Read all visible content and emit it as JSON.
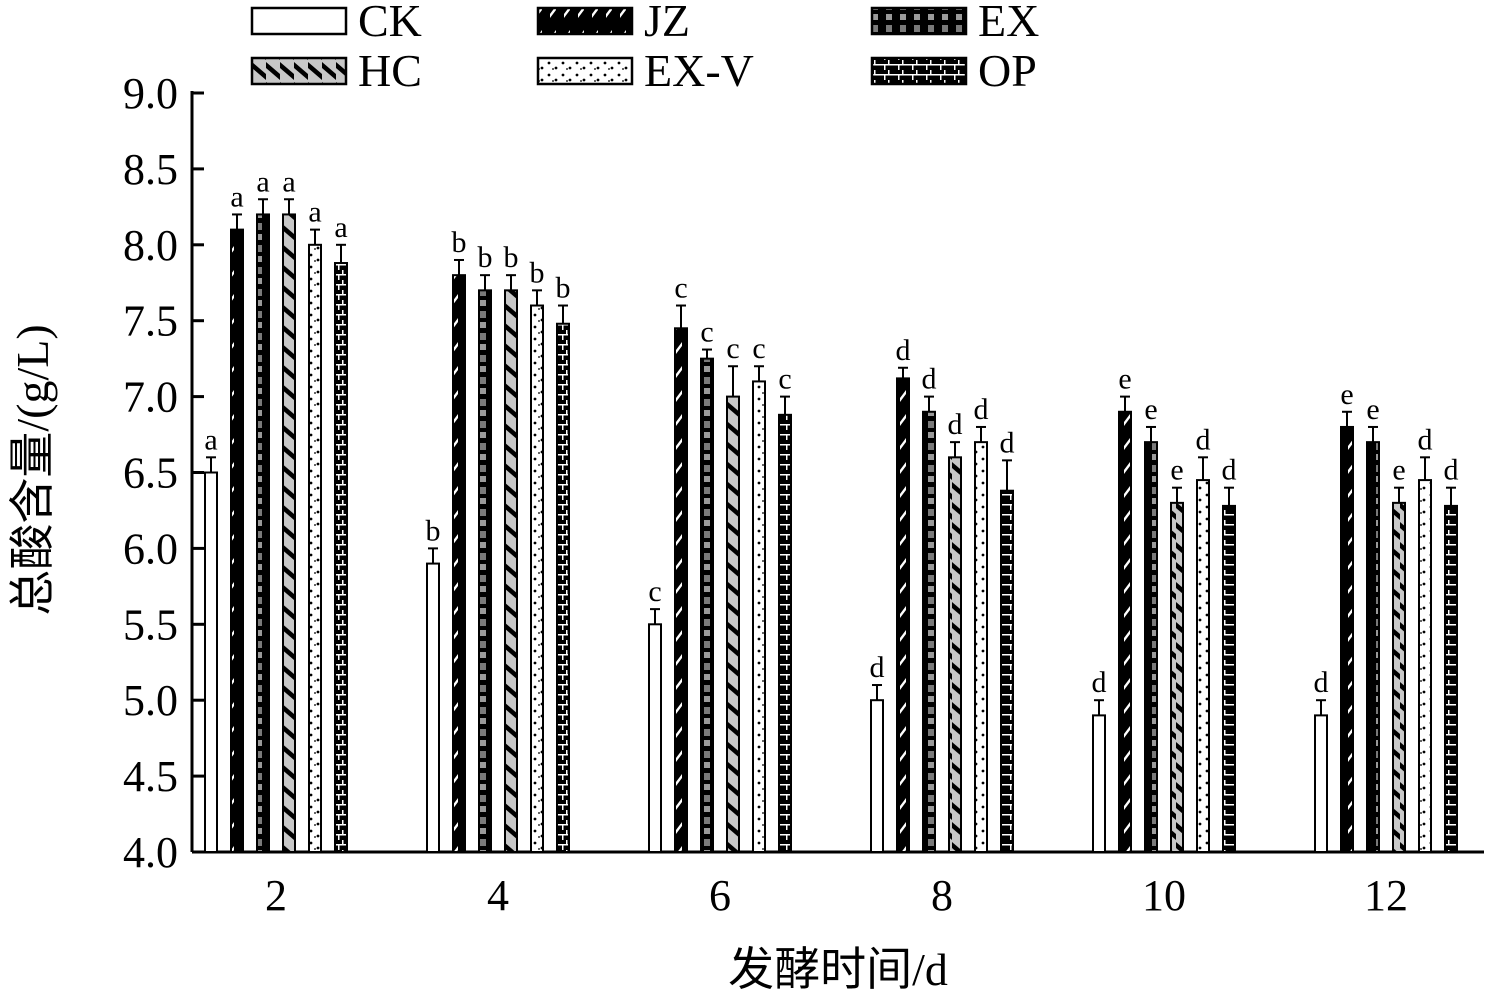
{
  "chart_data": {
    "type": "bar",
    "xlabel": "发酵时间/d",
    "ylabel": "总酸含量/(g/L)",
    "ylim": [
      4.0,
      9.0
    ],
    "yticks": [
      "4.0",
      "4.5",
      "5.0",
      "5.5",
      "6.0",
      "6.5",
      "7.0",
      "7.5",
      "8.0",
      "8.5",
      "9.0"
    ],
    "categories": [
      "2",
      "4",
      "6",
      "8",
      "10",
      "12"
    ],
    "legend_position": "top",
    "series": [
      {
        "name": "CK",
        "pattern": "white",
        "values": [
          6.5,
          5.9,
          5.5,
          5.0,
          4.9,
          4.9
        ],
        "errors": [
          0.1,
          0.1,
          0.1,
          0.1,
          0.1,
          0.1
        ],
        "labels": [
          "a",
          "b",
          "c",
          "d",
          "d",
          "d"
        ]
      },
      {
        "name": "JZ",
        "pattern": "diagonal",
        "values": [
          8.1,
          7.8,
          7.45,
          7.12,
          6.9,
          6.8
        ],
        "errors": [
          0.1,
          0.1,
          0.15,
          0.07,
          0.1,
          0.1
        ],
        "labels": [
          "a",
          "b",
          "c",
          "d",
          "e",
          "e"
        ]
      },
      {
        "name": "EX",
        "pattern": "checker",
        "values": [
          8.2,
          7.7,
          7.25,
          6.9,
          6.7,
          6.7
        ],
        "errors": [
          0.1,
          0.1,
          0.06,
          0.1,
          0.1,
          0.1
        ],
        "labels": [
          "a",
          "b",
          "c",
          "d",
          "e",
          "e"
        ]
      },
      {
        "name": "HC",
        "pattern": "thickdiag",
        "values": [
          8.2,
          7.7,
          7.0,
          6.6,
          6.3,
          6.3
        ],
        "errors": [
          0.1,
          0.1,
          0.2,
          0.1,
          0.1,
          0.1
        ],
        "labels": [
          "a",
          "b",
          "c",
          "d",
          "e",
          "e"
        ]
      },
      {
        "name": "EX-V",
        "pattern": "dots",
        "values": [
          8.0,
          7.6,
          7.1,
          6.7,
          6.45,
          6.45
        ],
        "errors": [
          0.1,
          0.1,
          0.1,
          0.1,
          0.15,
          0.15
        ],
        "labels": [
          "a",
          "b",
          "c",
          "d",
          "d",
          "d"
        ]
      },
      {
        "name": "OP",
        "pattern": "bricks",
        "values": [
          7.88,
          7.48,
          6.88,
          6.38,
          6.28,
          6.28
        ],
        "errors": [
          0.12,
          0.12,
          0.12,
          0.2,
          0.12,
          0.12
        ],
        "labels": [
          "a",
          "b",
          "c",
          "d",
          "d",
          "d"
        ]
      }
    ]
  }
}
